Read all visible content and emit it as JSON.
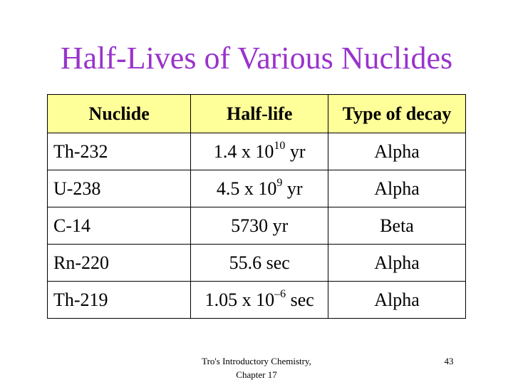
{
  "title": "Half-Lives of Various Nuclides",
  "table": {
    "headers": [
      "Nuclide",
      "Half-life",
      "Type of decay"
    ],
    "rows": [
      {
        "nuclide": "Th-232",
        "halflife_base": "1.4 x 10",
        "halflife_exp": "10",
        "halflife_unit": " yr",
        "decay": "Alpha"
      },
      {
        "nuclide": "U-238",
        "halflife_base": "4.5 x 10",
        "halflife_exp": "9",
        "halflife_unit": " yr",
        "decay": "Alpha"
      },
      {
        "nuclide": "C-14",
        "halflife_base": "5730 yr",
        "halflife_exp": "",
        "halflife_unit": "",
        "decay": "Beta"
      },
      {
        "nuclide": "Rn-220",
        "halflife_base": "55.6 sec",
        "halflife_exp": "",
        "halflife_unit": "",
        "decay": "Alpha"
      },
      {
        "nuclide": "Th-219",
        "halflife_base": "1.05 x 10",
        "halflife_exp": "–6",
        "halflife_unit": " sec",
        "decay": "Alpha"
      }
    ]
  },
  "footer": {
    "line1": "Tro's Introductory Chemistry,",
    "line2": "Chapter 17"
  },
  "page_number": "43",
  "colors": {
    "title": "#9933cc",
    "header_fill": "#ffff99"
  }
}
